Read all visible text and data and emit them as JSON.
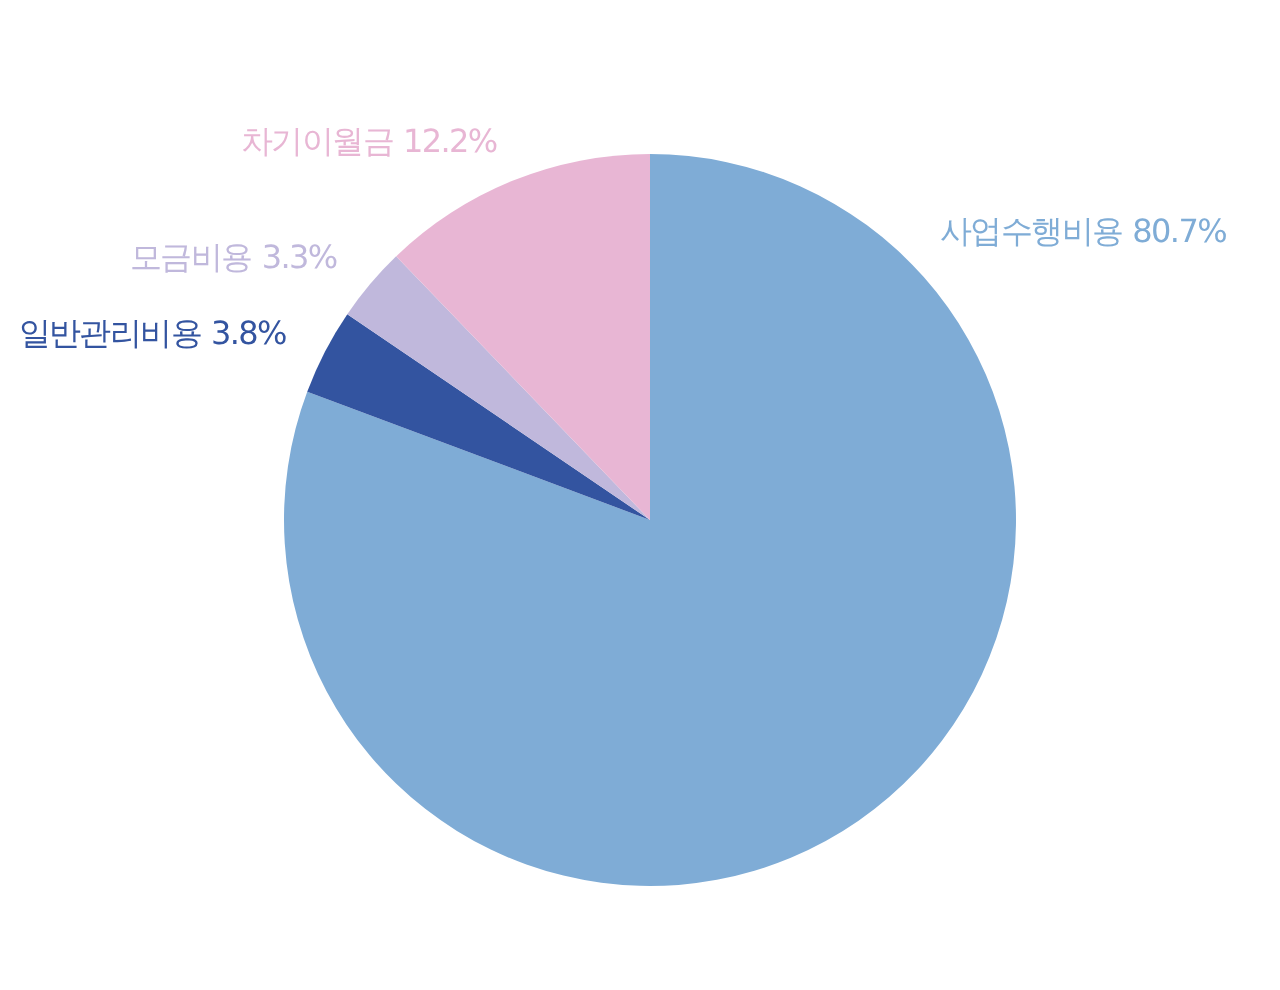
{
  "chart_data": {
    "type": "pie",
    "categories": [
      "사업수행비용",
      "일반관리비용",
      "모금비용",
      "차기이월금"
    ],
    "values": [
      80.7,
      3.8,
      3.3,
      12.2
    ],
    "colors": [
      "#7facd6",
      "#3354a0",
      "#c0b8dc",
      "#e8b6d4"
    ],
    "value_labels": [
      "80.7%",
      "3.8%",
      "3.3%",
      "12.2%"
    ],
    "legend": false
  }
}
